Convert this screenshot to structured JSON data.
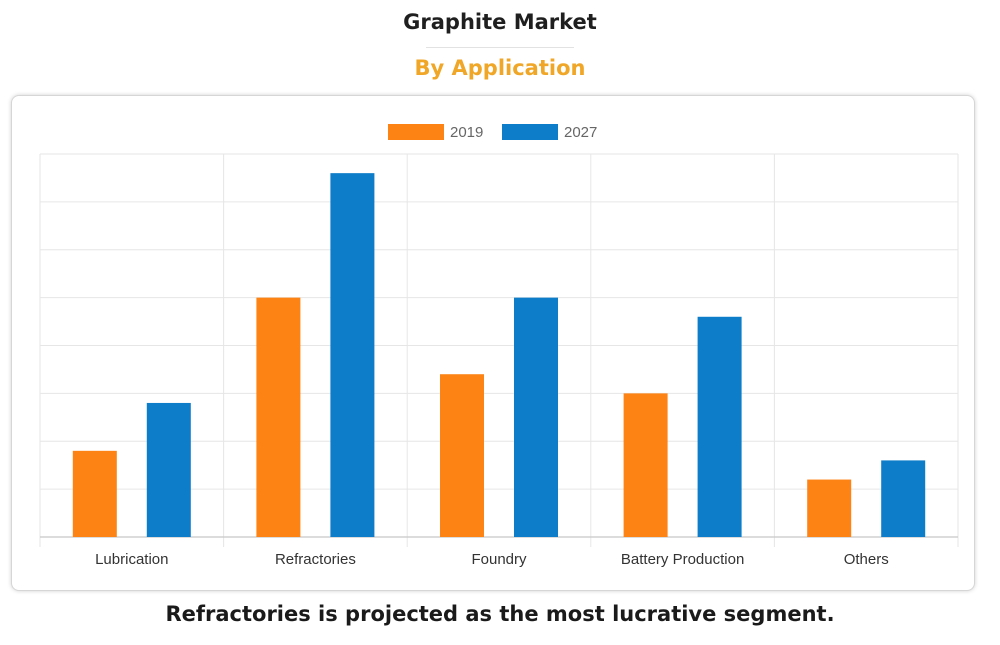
{
  "title": "Graphite Market",
  "subtitle": "By Application",
  "caption": "Refractories is projected as the most lucrative segment.",
  "colors": {
    "series_2019": "#fc8314",
    "series_2027": "#0e7dc9",
    "subtitle": "#f0a626"
  },
  "chart_data": {
    "type": "bar",
    "title": "Graphite Market",
    "subtitle": "By Application",
    "categories": [
      "Lubrication",
      "Refractories",
      "Foundry",
      "Battery Production",
      "Others"
    ],
    "series": [
      {
        "name": "2019",
        "color": "#fc8314",
        "values": [
          1.8,
          5.0,
          3.4,
          3.0,
          1.2
        ]
      },
      {
        "name": "2027",
        "color": "#0e7dc9",
        "values": [
          2.8,
          7.6,
          5.0,
          4.6,
          1.6
        ]
      }
    ],
    "ylim": [
      0,
      8
    ],
    "y_tick_labels_shown": false,
    "grid": true,
    "legend": "top-center",
    "xlabel": "",
    "ylabel": ""
  }
}
